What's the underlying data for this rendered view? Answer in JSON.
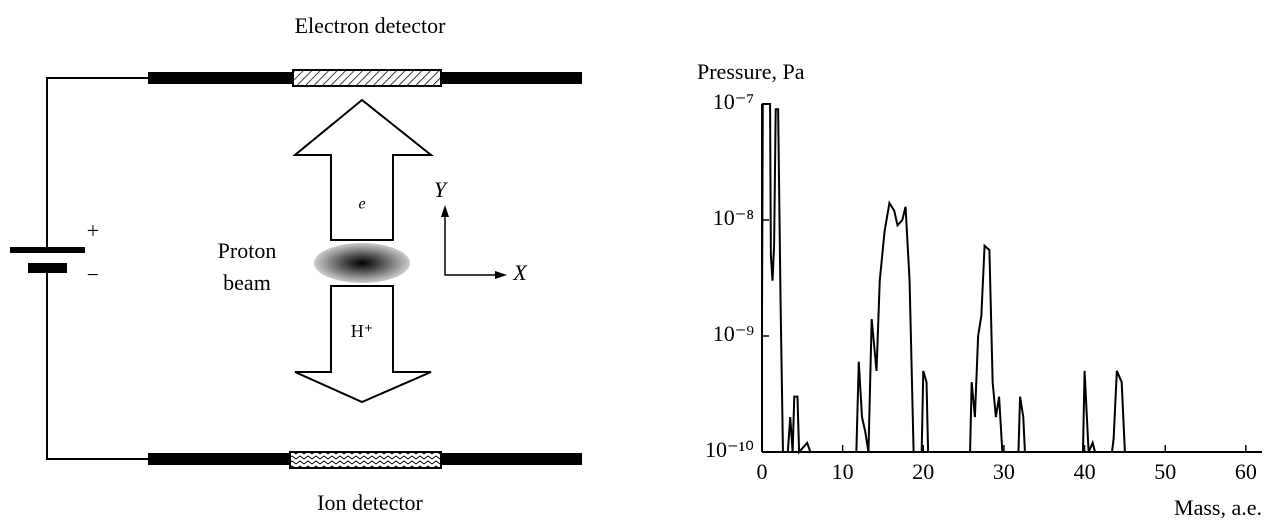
{
  "diagram": {
    "electron_detector": "Electron detector",
    "ion_detector": "Ion detector",
    "proton_beam": [
      "Proton",
      "beam"
    ],
    "electron": "e",
    "proton": "H⁺",
    "axis_y": "Y",
    "axis_x": "X",
    "plus": "+",
    "minus": "−"
  },
  "chart_data": {
    "type": "line",
    "y_label": "Pressure, Pa",
    "x_label": "Mass, a.e.",
    "log_y": true,
    "grid": false,
    "xlim": [
      0,
      62
    ],
    "xticks": [
      0,
      10,
      20,
      30,
      40,
      50,
      60
    ],
    "ylim": [
      1e-10,
      1e-07
    ],
    "yticks": [
      {
        "value": 1e-10,
        "label": "10⁻¹⁰"
      },
      {
        "value": 1e-09,
        "label": "10⁻⁹"
      },
      {
        "value": 1e-08,
        "label": "10⁻⁸"
      },
      {
        "value": 1e-07,
        "label": "10⁻⁷"
      }
    ],
    "x": [
      0,
      0.1,
      1.0,
      1.1,
      1.3,
      1.5,
      1.7,
      2.0,
      2.3,
      2.6,
      3.2,
      3.5,
      3.8,
      4.0,
      4.4,
      4.6,
      5.6,
      6.0,
      11.7,
      12.0,
      12.4,
      12.8,
      13.2,
      13.6,
      14.2,
      14.6,
      15.2,
      15.8,
      16.4,
      16.8,
      17.4,
      17.8,
      18.3,
      18.8,
      19.8,
      20.0,
      20.4,
      20.6,
      25.8,
      26.0,
      26.4,
      26.8,
      27.2,
      27.6,
      28.2,
      28.6,
      29.0,
      29.4,
      29.8,
      31.8,
      32.0,
      32.4,
      32.6,
      39.8,
      40.0,
      40.5,
      41.0,
      41.3,
      43.4,
      43.6,
      44.0,
      44.6,
      45.0,
      62
    ],
    "series": [
      {
        "color": "#000000",
        "values": [
          1.5e-09,
          1e-07,
          1e-07,
          5e-09,
          3e-09,
          6e-09,
          9e-08,
          9e-08,
          2e-09,
          1e-10,
          1e-10,
          2e-10,
          1e-10,
          3e-10,
          3e-10,
          1e-10,
          1.2e-10,
          1e-10,
          1e-10,
          6e-10,
          2e-10,
          1.5e-10,
          1e-10,
          1.4e-09,
          5e-10,
          3e-09,
          8e-09,
          1.4e-08,
          1.2e-08,
          9e-09,
          1e-08,
          1.3e-08,
          3e-09,
          1e-10,
          1e-10,
          5e-10,
          4e-10,
          1e-10,
          1e-10,
          4e-10,
          2e-10,
          1e-09,
          1.5e-09,
          6e-09,
          5.5e-09,
          4e-10,
          2e-10,
          3e-10,
          1e-10,
          1e-10,
          3e-10,
          2e-10,
          1e-10,
          1e-10,
          5e-10,
          1e-10,
          1.2e-10,
          1e-10,
          1e-10,
          1.3e-10,
          5e-10,
          4e-10,
          1e-10,
          1e-10
        ]
      }
    ]
  }
}
